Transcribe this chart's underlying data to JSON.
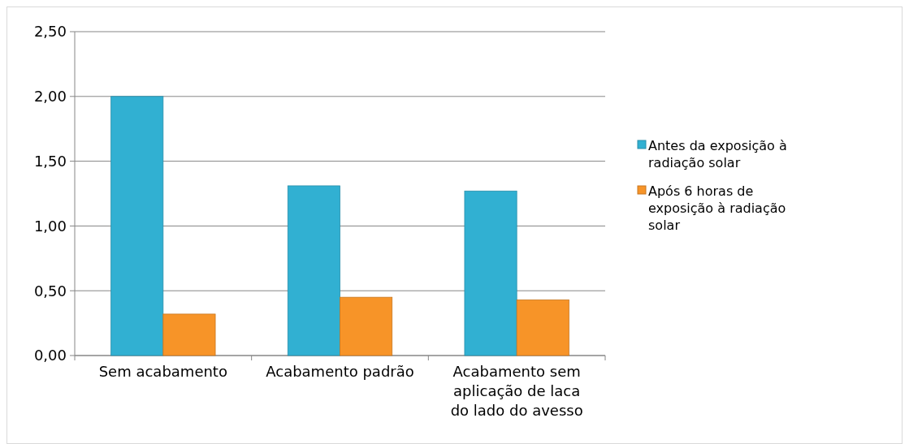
{
  "chart_data": {
    "type": "bar",
    "categories": [
      "Sem acabamento",
      "Acabamento padrão",
      "Acabamento sem aplicação de laca do lado do avesso"
    ],
    "series": [
      {
        "name": "Antes da exposição à radiação solar",
        "color": "#31b0d2",
        "values": [
          2.0,
          1.31,
          1.27
        ]
      },
      {
        "name": "Após 6 horas de exposição à radiação solar",
        "color": "#f79428",
        "values": [
          0.32,
          0.45,
          0.43
        ]
      }
    ],
    "ylim": [
      0,
      2.5
    ],
    "yticks": [
      {
        "value": 0,
        "label": "0,00"
      },
      {
        "value": 0.5,
        "label": "0,50"
      },
      {
        "value": 1,
        "label": "1,00"
      },
      {
        "value": 1.5,
        "label": "1,50"
      },
      {
        "value": 2,
        "label": "2,00"
      },
      {
        "value": 2.5,
        "label": "2,50"
      }
    ],
    "grid": "y",
    "legend": "right"
  }
}
